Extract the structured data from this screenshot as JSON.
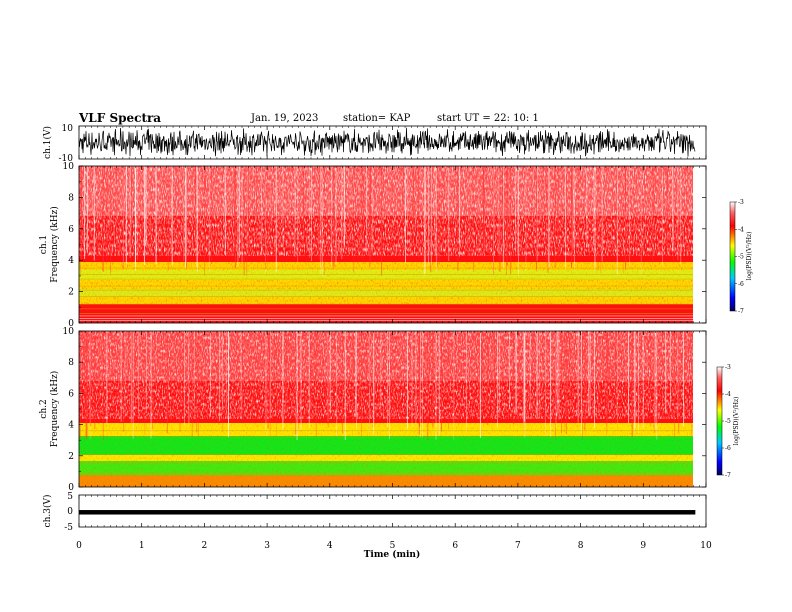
{
  "header": {
    "title": "VLF Spectra",
    "date": "Jan. 19, 2023",
    "station": "station= KAP",
    "start": "start  UT =   22: 10: 1"
  },
  "colors": {
    "background_high": "#ff0000",
    "mid": "#ffff00",
    "low": "#00ff00",
    "colorbar": [
      "#000080",
      "#0000ff",
      "#00ffff",
      "#00ff00",
      "#ffff00",
      "#ff0000",
      "#ffffff"
    ]
  },
  "chart_data": [
    {
      "type": "line",
      "panel": "ch1-waveform",
      "ylabel": "ch.1(V)",
      "ylim": [
        -10,
        10
      ],
      "yticks": [
        "10",
        "-10"
      ],
      "xlim": [
        0,
        10
      ],
      "data_extent_min": 9.83,
      "amplitude_range_v": [
        -9,
        9
      ]
    },
    {
      "type": "heatmap",
      "panel": "ch1-spectrogram",
      "ylabel_line1": "ch.1",
      "ylabel_line2": "Frequency  (kHz)",
      "ylim": [
        0,
        10
      ],
      "yticks": [
        "0",
        "2",
        "4",
        "6",
        "8",
        "10"
      ],
      "xlim": [
        0,
        10
      ],
      "colorbar": {
        "label": "log(PSD)(V²/Hz)",
        "range": [
          -7,
          -3
        ],
        "ticks": [
          "-3",
          "-4",
          "-5",
          "-6",
          "-7"
        ]
      },
      "bands_khz": [
        {
          "from": 4.2,
          "to": 10,
          "level": "red-speckle"
        },
        {
          "from": 3.6,
          "to": 4.2,
          "level": "red"
        },
        {
          "from": 1.0,
          "to": 3.6,
          "level": "yellow-green"
        },
        {
          "from": 0.5,
          "to": 1.0,
          "level": "red"
        },
        {
          "from": 0,
          "to": 0.5,
          "level": "red-lines"
        }
      ]
    },
    {
      "type": "heatmap",
      "panel": "ch2-spectrogram",
      "ylabel_line1": "ch.2",
      "ylabel_line2": "Frequency  (kHz)",
      "ylim": [
        0,
        10
      ],
      "yticks": [
        "0",
        "2",
        "4",
        "6",
        "8",
        "10"
      ],
      "xlim": [
        0,
        10
      ],
      "colorbar": {
        "label": "log(PSD)(V²/Hz)",
        "range": [
          -7,
          -3
        ],
        "ticks": [
          "-3",
          "-4",
          "-5",
          "-6",
          "-7"
        ]
      },
      "bands_khz": [
        {
          "from": 4.4,
          "to": 10,
          "level": "red-speckle"
        },
        {
          "from": 3.6,
          "to": 4.4,
          "level": "red"
        },
        {
          "from": 0.8,
          "to": 3.6,
          "level": "green-yellow"
        },
        {
          "from": 0,
          "to": 0.8,
          "level": "yellow-red"
        }
      ]
    },
    {
      "type": "line",
      "panel": "ch3-waveform",
      "ylabel": "ch.3(V)",
      "ylim": [
        -5,
        5
      ],
      "yticks": [
        "5",
        "0",
        "-5"
      ],
      "xlim": [
        0,
        10
      ],
      "data_extent_min": 9.83,
      "amplitude_range_v": [
        -1.1,
        0.3
      ]
    }
  ],
  "xaxis": {
    "label": "Time  (min)",
    "ticks": [
      "0",
      "1",
      "2",
      "3",
      "4",
      "5",
      "6",
      "7",
      "8",
      "9",
      "10"
    ]
  }
}
